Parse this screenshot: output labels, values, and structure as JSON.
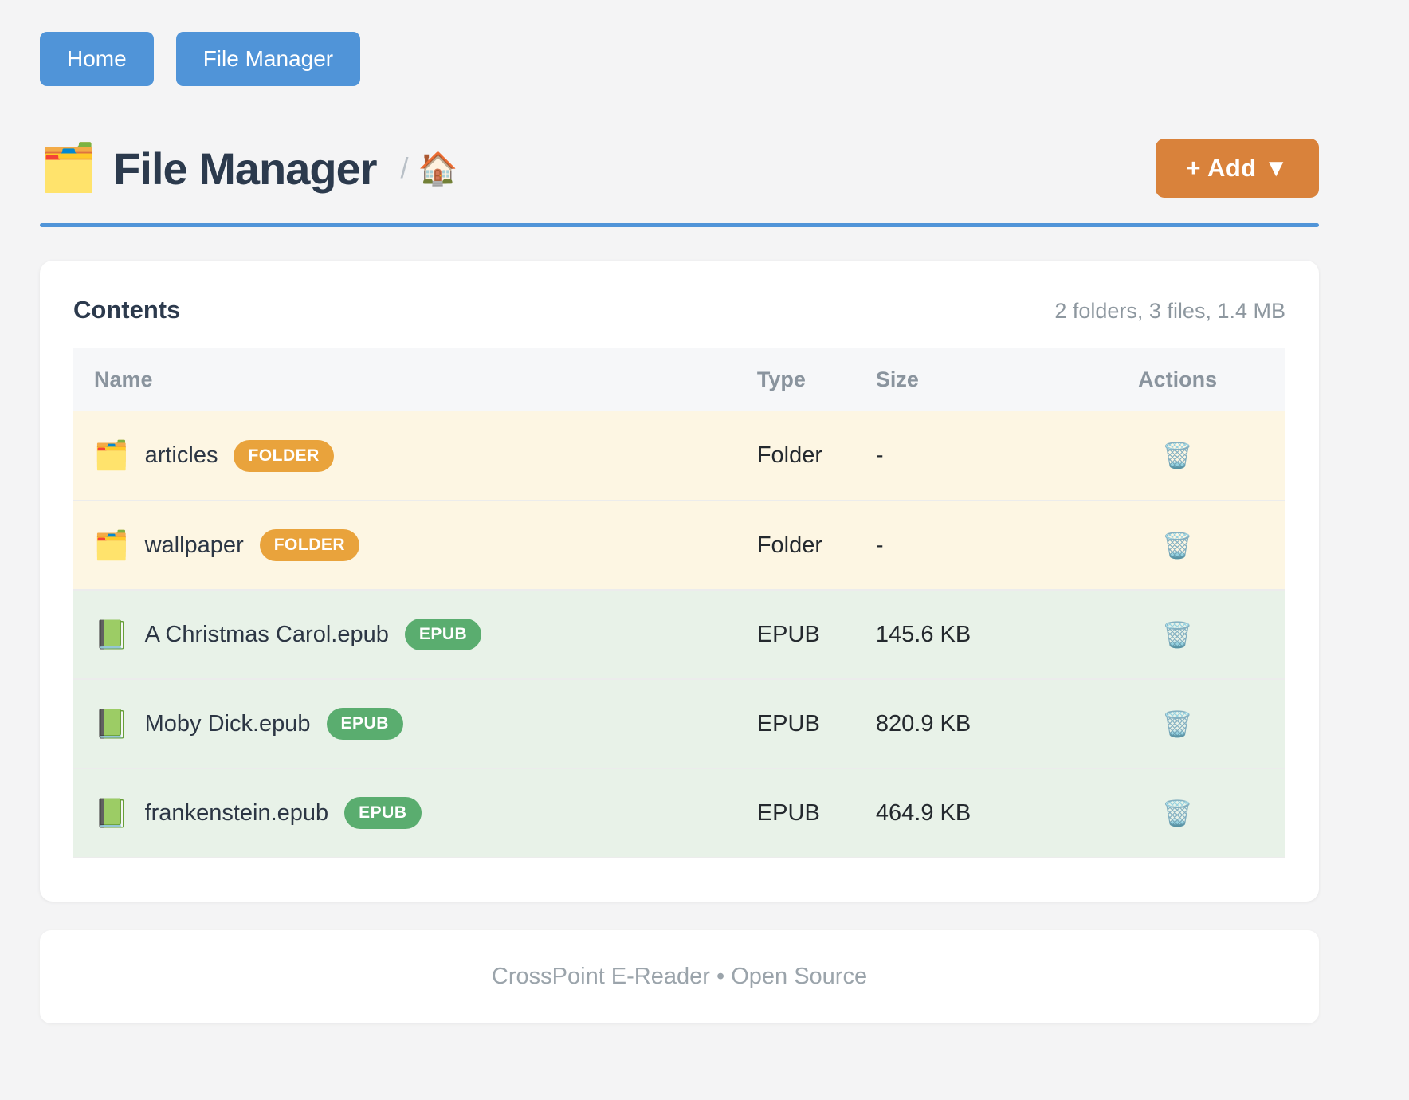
{
  "nav": {
    "buttons": [
      {
        "label": "Home"
      },
      {
        "label": "File Manager"
      }
    ]
  },
  "header": {
    "title_icon": "🗂️",
    "title": "File Manager",
    "breadcrumb_separator": "/",
    "breadcrumb_home_icon": "🏠",
    "add_button_label": "+ Add ▼"
  },
  "contents": {
    "title": "Contents",
    "summary": "2 folders, 3 files, 1.4 MB",
    "columns": [
      "Name",
      "Type",
      "Size",
      "Actions"
    ],
    "rows": [
      {
        "icon": "🗂️",
        "name": "articles",
        "badge": "FOLDER",
        "badge_type": "folder",
        "type": "Folder",
        "size": "-",
        "action_icon": "🗑️"
      },
      {
        "icon": "🗂️",
        "name": "wallpaper",
        "badge": "FOLDER",
        "badge_type": "folder",
        "type": "Folder",
        "size": "-",
        "action_icon": "🗑️"
      },
      {
        "icon": "📗",
        "name": "A Christmas Carol.epub",
        "badge": "EPUB",
        "badge_type": "epub",
        "type": "EPUB",
        "size": "145.6 KB",
        "action_icon": "🗑️"
      },
      {
        "icon": "📗",
        "name": "Moby Dick.epub",
        "badge": "EPUB",
        "badge_type": "epub",
        "type": "EPUB",
        "size": "820.9 KB",
        "action_icon": "🗑️"
      },
      {
        "icon": "📗",
        "name": "frankenstein.epub",
        "badge": "EPUB",
        "badge_type": "epub",
        "type": "EPUB",
        "size": "464.9 KB",
        "action_icon": "🗑️"
      }
    ]
  },
  "footer": {
    "text": "CrossPoint E-Reader • Open Source"
  },
  "colors": {
    "primary_blue": "#5094d8",
    "accent_orange": "#d9823b",
    "folder_badge": "#e9a33c",
    "epub_badge": "#5aad6f",
    "folder_row_bg": "#fdf6e3",
    "file_row_bg": "#e8f2e8"
  }
}
